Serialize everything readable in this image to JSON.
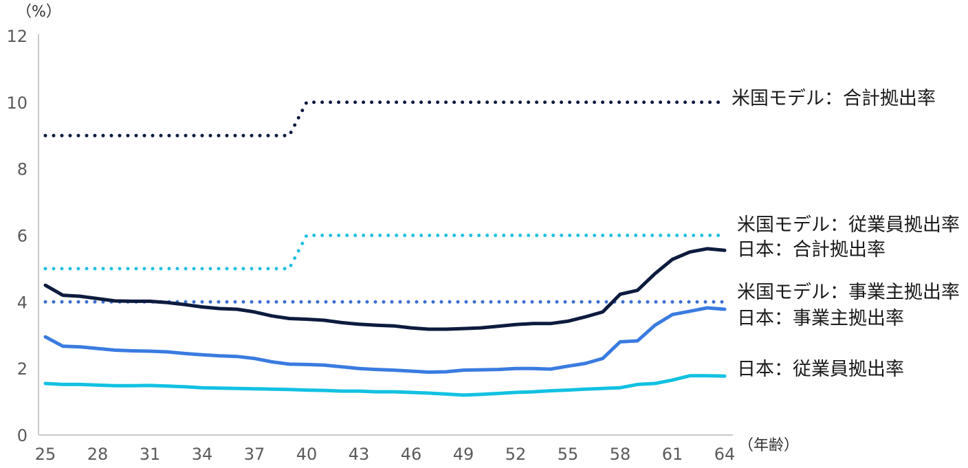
{
  "chart_data": {
    "type": "line",
    "y_unit": "（%）",
    "x_unit": "（年齢）",
    "ylim": [
      0,
      12
    ],
    "y_ticks": [
      "0",
      "2",
      "4",
      "6",
      "8",
      "10",
      "12"
    ],
    "x_tick_labels": [
      "25",
      "28",
      "31",
      "34",
      "37",
      "40",
      "43",
      "46",
      "49",
      "52",
      "55",
      "58",
      "61",
      "64"
    ],
    "x": [
      25,
      26,
      27,
      28,
      29,
      30,
      31,
      32,
      33,
      34,
      35,
      36,
      37,
      38,
      39,
      40,
      41,
      42,
      43,
      44,
      45,
      46,
      47,
      48,
      49,
      50,
      51,
      52,
      53,
      54,
      55,
      56,
      57,
      58,
      59,
      60,
      61,
      62,
      63,
      64
    ],
    "grid": false,
    "legend": "direct labels at right end of lines",
    "series": [
      {
        "name": "米国モデル：合計拠出率",
        "style": "dotted",
        "color": "#0d1b3e",
        "values": [
          9,
          9,
          9,
          9,
          9,
          9,
          9,
          9,
          9,
          9,
          9,
          9,
          9,
          9,
          9,
          10,
          10,
          10,
          10,
          10,
          10,
          10,
          10,
          10,
          10,
          10,
          10,
          10,
          10,
          10,
          10,
          10,
          10,
          10,
          10,
          10,
          10,
          10,
          10,
          10
        ]
      },
      {
        "name": "米国モデル：従業員拠出率",
        "style": "dotted",
        "color": "#1fbfe0",
        "values": [
          5,
          5,
          5,
          5,
          5,
          5,
          5,
          5,
          5,
          5,
          5,
          5,
          5,
          5,
          5,
          6,
          6,
          6,
          6,
          6,
          6,
          6,
          6,
          6,
          6,
          6,
          6,
          6,
          6,
          6,
          6,
          6,
          6,
          6,
          6,
          6,
          6,
          6,
          6,
          6
        ]
      },
      {
        "name": "日本：合計拠出率",
        "style": "solid",
        "color": "#0d1b3e",
        "values": [
          4.5,
          4.2,
          4.17,
          4.1,
          4.03,
          4.02,
          4.02,
          3.98,
          3.92,
          3.85,
          3.8,
          3.78,
          3.7,
          3.58,
          3.5,
          3.48,
          3.45,
          3.38,
          3.33,
          3.3,
          3.28,
          3.22,
          3.18,
          3.18,
          3.2,
          3.22,
          3.27,
          3.32,
          3.35,
          3.35,
          3.42,
          3.55,
          3.7,
          4.23,
          4.35,
          4.85,
          5.28,
          5.5,
          5.6,
          5.55
        ]
      },
      {
        "name": "米国モデル：事業主拠出率",
        "style": "dotted",
        "color": "#3d6fd1",
        "values": [
          4,
          4,
          4,
          4,
          4,
          4,
          4,
          4,
          4,
          4,
          4,
          4,
          4,
          4,
          4,
          4,
          4,
          4,
          4,
          4,
          4,
          4,
          4,
          4,
          4,
          4,
          4,
          4,
          4,
          4,
          4,
          4,
          4,
          4,
          4,
          4,
          4,
          4,
          4,
          4
        ]
      },
      {
        "name": "日本：事業主拠出率",
        "style": "solid",
        "color": "#3a7be0",
        "values": [
          2.95,
          2.67,
          2.65,
          2.6,
          2.55,
          2.53,
          2.52,
          2.5,
          2.45,
          2.41,
          2.38,
          2.36,
          2.3,
          2.2,
          2.13,
          2.12,
          2.1,
          2.05,
          2.0,
          1.97,
          1.95,
          1.92,
          1.89,
          1.9,
          1.95,
          1.96,
          1.97,
          2.0,
          2.0,
          1.98,
          2.07,
          2.15,
          2.3,
          2.8,
          2.83,
          3.3,
          3.62,
          3.72,
          3.82,
          3.78
        ]
      },
      {
        "name": "日本：従業員拠出率",
        "style": "solid",
        "color": "#12c1e2",
        "values": [
          1.55,
          1.52,
          1.52,
          1.5,
          1.48,
          1.48,
          1.49,
          1.47,
          1.45,
          1.42,
          1.41,
          1.4,
          1.39,
          1.38,
          1.37,
          1.35,
          1.34,
          1.32,
          1.32,
          1.3,
          1.3,
          1.28,
          1.26,
          1.23,
          1.2,
          1.22,
          1.25,
          1.28,
          1.3,
          1.33,
          1.35,
          1.38,
          1.4,
          1.42,
          1.52,
          1.55,
          1.65,
          1.78,
          1.78,
          1.77
        ]
      }
    ]
  }
}
